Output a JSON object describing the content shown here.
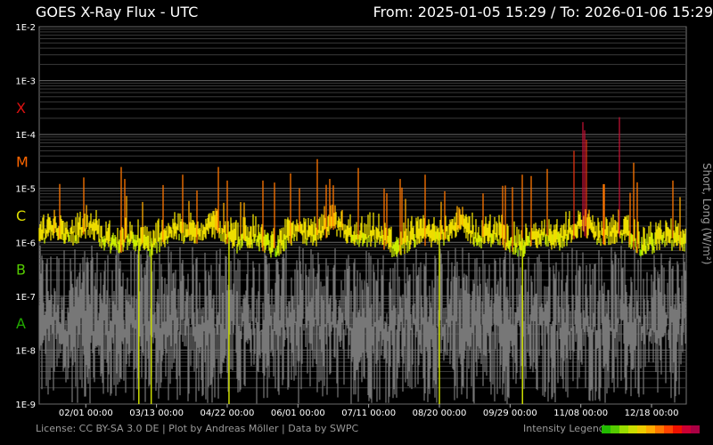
{
  "header": {
    "title": "GOES X-Ray Flux - UTC",
    "range_text": "From: 2025-01-05 15:29  /  To: 2026-01-06 15:29"
  },
  "footer": {
    "license_text": "License: CC BY-SA 3.0 DE | Plot by Andreas Möller | Data by SWPC",
    "legend_label": "Intensity Legend",
    "legend_colors": [
      "#22bb00",
      "#55cc00",
      "#99dd00",
      "#ccdd00",
      "#eecc00",
      "#ffaa00",
      "#ff7700",
      "#ff4400",
      "#ee1100",
      "#cc0033",
      "#aa0044"
    ]
  },
  "chart_data": {
    "type": "line",
    "title": "GOES X-Ray Flux - UTC",
    "ylabel": "Short, Long (W/m²)",
    "y_scale": "log",
    "ylim": [
      1e-09,
      0.01
    ],
    "x_range": [
      "2025-01-05 15:29",
      "2026-01-06 15:29"
    ],
    "y_ticks": [
      {
        "value": 0.01,
        "label": "1E-2"
      },
      {
        "value": 0.001,
        "label": "1E-3"
      },
      {
        "value": 0.0001,
        "label": "1E-4"
      },
      {
        "value": 1e-05,
        "label": "1E-5"
      },
      {
        "value": 1e-06,
        "label": "1E-6"
      },
      {
        "value": 1e-07,
        "label": "1E-7"
      },
      {
        "value": 1e-08,
        "label": "1E-8"
      },
      {
        "value": 1e-09,
        "label": "1E-9"
      }
    ],
    "flare_classes": [
      {
        "label": "X",
        "value": 0.000316,
        "color": "#dd1111"
      },
      {
        "label": "M",
        "value": 3.16e-05,
        "color": "#ff6600"
      },
      {
        "label": "C",
        "value": 3.16e-06,
        "color": "#dddd00"
      },
      {
        "label": "B",
        "value": 3.16e-07,
        "color": "#55cc00"
      },
      {
        "label": "A",
        "value": 3.16e-08,
        "color": "#22aa00"
      }
    ],
    "x_ticks": [
      {
        "date": "2025-02-01",
        "label": "02/01 00:00"
      },
      {
        "date": "2025-03-13",
        "label": "03/13 00:00"
      },
      {
        "date": "2025-04-22",
        "label": "04/22 00:00"
      },
      {
        "date": "2025-06-01",
        "label": "06/01 00:00"
      },
      {
        "date": "2025-07-11",
        "label": "07/11 00:00"
      },
      {
        "date": "2025-08-20",
        "label": "08/20 00:00"
      },
      {
        "date": "2025-09-29",
        "label": "09/29 00:00"
      },
      {
        "date": "2025-11-08",
        "label": "11/08 00:00"
      },
      {
        "date": "2025-12-18",
        "label": "12/18 00:00"
      }
    ],
    "series": [
      {
        "name": "Long",
        "color": "#ddee00",
        "baseline": 1.3e-06
      },
      {
        "name": "Short",
        "color": "#777777",
        "baseline": 8e-08
      }
    ],
    "peaks": [
      {
        "date": "2025-01-31",
        "value": 1.6e-05
      },
      {
        "date": "2025-02-21",
        "value": 2.5e-05
      },
      {
        "date": "2025-02-23",
        "value": 1.5e-05
      },
      {
        "date": "2025-03-28",
        "value": 1.8e-05
      },
      {
        "date": "2025-04-17",
        "value": 2.5e-05
      },
      {
        "date": "2025-04-22",
        "value": 1.4e-05
      },
      {
        "date": "2025-05-12",
        "value": 1.4e-05
      },
      {
        "date": "2025-05-28",
        "value": 1.9e-05
      },
      {
        "date": "2025-06-12",
        "value": 3.5e-05
      },
      {
        "date": "2025-06-19",
        "value": 1.5e-05
      },
      {
        "date": "2025-07-05",
        "value": 2.4e-05
      },
      {
        "date": "2025-07-29",
        "value": 1.5e-05
      },
      {
        "date": "2025-08-12",
        "value": 1.8e-05
      },
      {
        "date": "2025-10-06",
        "value": 1.8e-05
      },
      {
        "date": "2025-10-11",
        "value": 1.7e-05
      },
      {
        "date": "2025-10-20",
        "value": 2.3e-05
      },
      {
        "date": "2025-11-04",
        "value": 5e-05
      },
      {
        "date": "2025-11-09",
        "value": 0.00017
      },
      {
        "date": "2025-11-10",
        "value": 0.00012
      },
      {
        "date": "2025-11-11",
        "value": 8e-05
      },
      {
        "date": "2025-11-21",
        "value": 1.2e-05
      },
      {
        "date": "2025-11-30",
        "value": 0.00021
      },
      {
        "date": "2025-12-08",
        "value": 3e-05
      },
      {
        "date": "2025-12-10",
        "value": 1.3e-05
      },
      {
        "date": "2025-12-30",
        "value": 1.4e-05
      }
    ]
  }
}
